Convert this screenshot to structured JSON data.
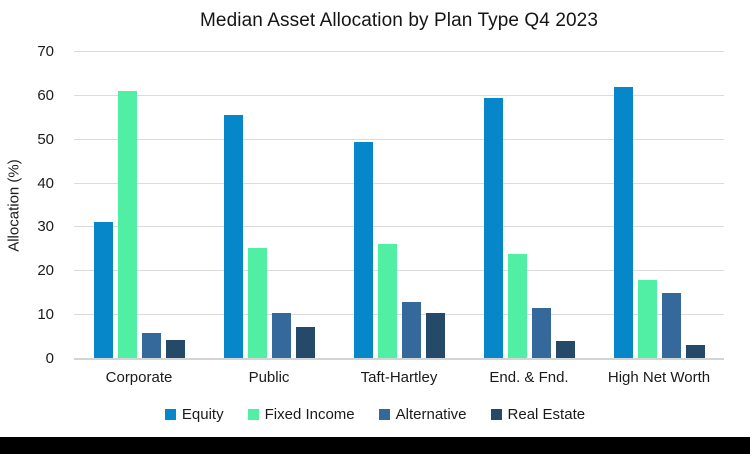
{
  "chart_data": {
    "type": "bar",
    "title": "Median Asset Allocation by Plan Type Q4 2023",
    "ylabel": "Allocation (%)",
    "xlabel": "",
    "categories": [
      "Corporate",
      "Public",
      "Taft-Hartley",
      "End. & Fnd.",
      "High Net Worth"
    ],
    "series": [
      {
        "name": "Equity",
        "color": "#0687c9",
        "values": [
          31.2,
          55.7,
          49.4,
          59.6,
          62.1
        ]
      },
      {
        "name": "Fixed Income",
        "color": "#50efa3",
        "values": [
          61.2,
          25.2,
          26.3,
          24.0,
          18.0
        ]
      },
      {
        "name": "Alternative",
        "color": "#36699b",
        "values": [
          5.9,
          10.6,
          12.9,
          11.6,
          15.0
        ]
      },
      {
        "name": "Real Estate",
        "color": "#254a69",
        "values": [
          4.4,
          7.2,
          10.5,
          4.0,
          3.2
        ]
      }
    ],
    "ylim": [
      0,
      70
    ],
    "yticks": [
      0,
      10,
      20,
      30,
      40,
      50,
      60,
      70
    ],
    "grid": true,
    "legend_position": "bottom",
    "gridline_color": "#dbdbdb"
  }
}
